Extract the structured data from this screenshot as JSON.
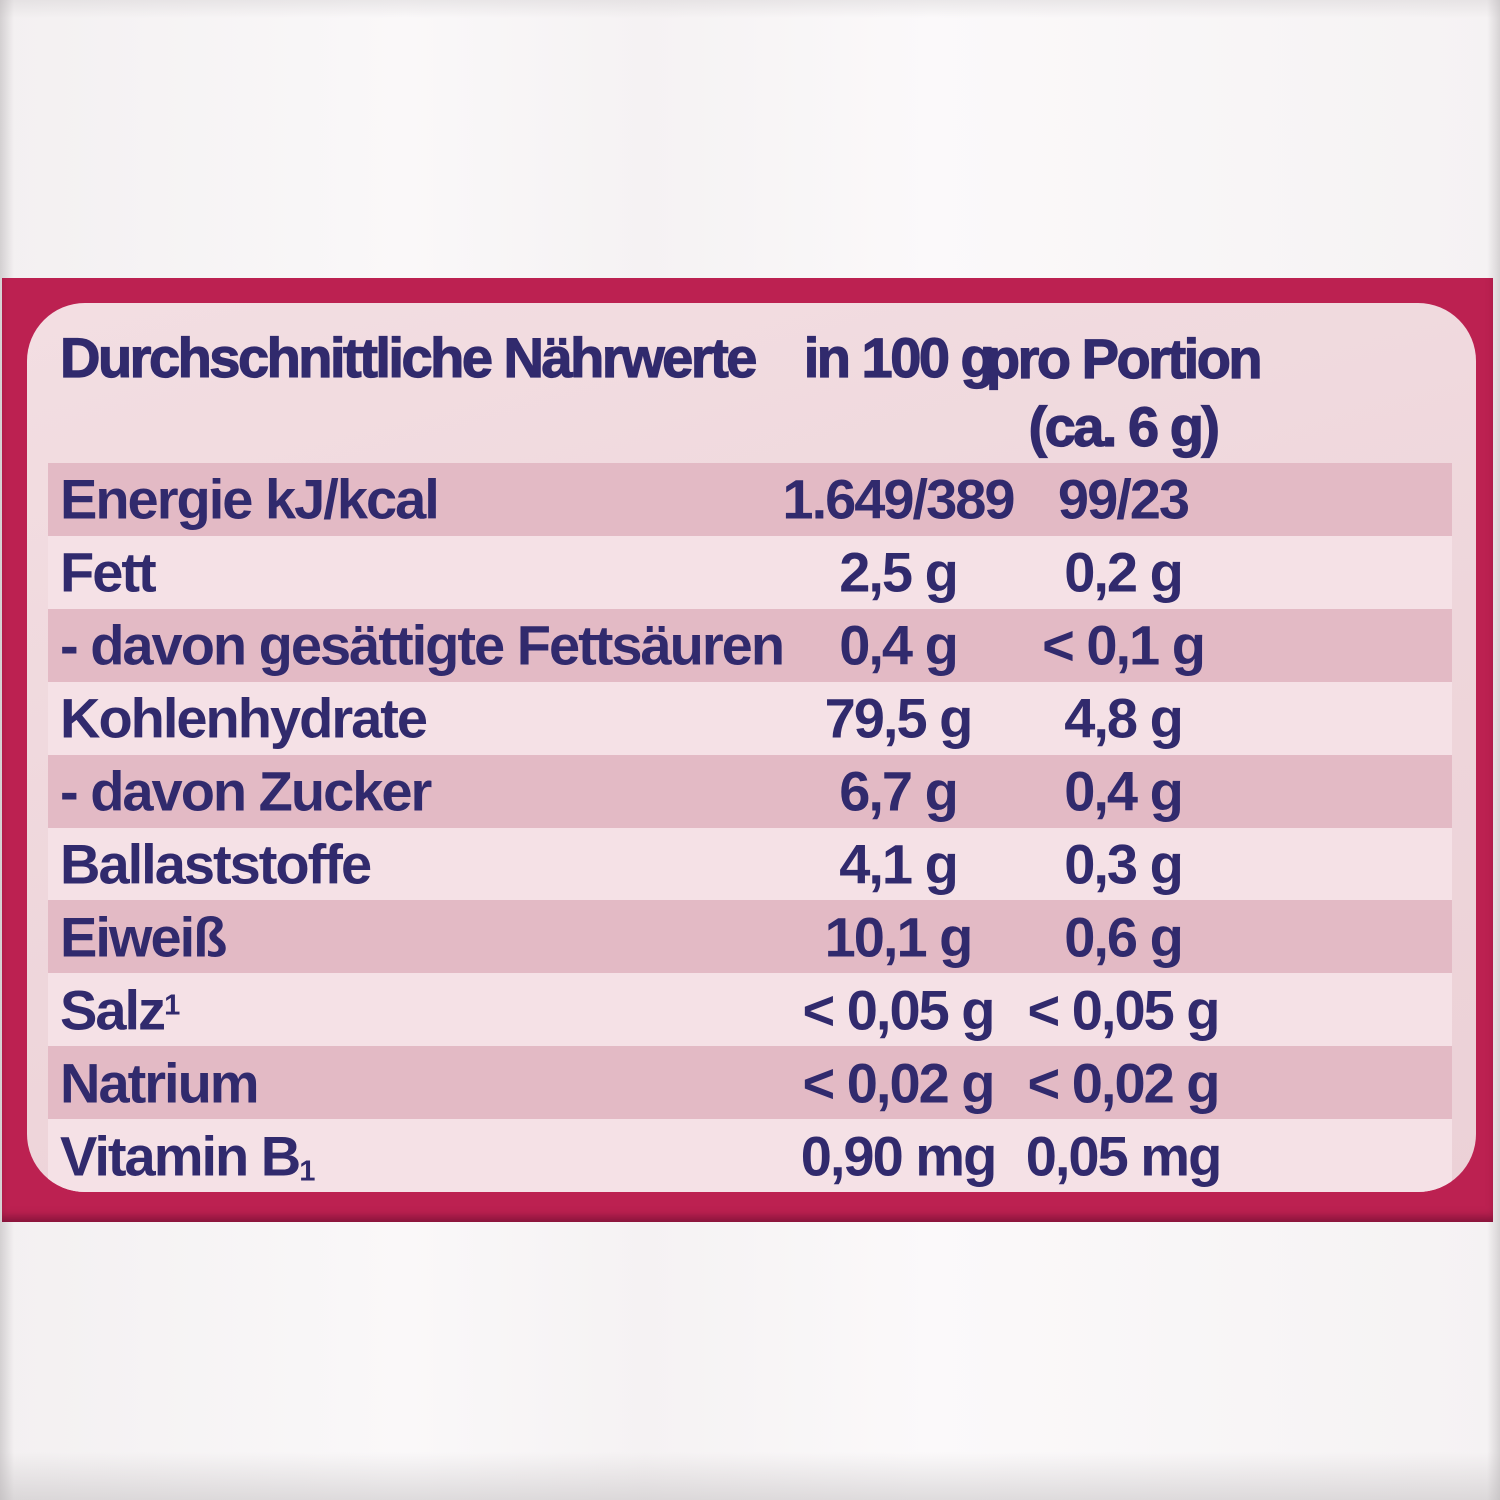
{
  "colors": {
    "red": "#bc2151",
    "panel": "#eed6db",
    "light": "#f5e1e6",
    "dark": "#e3bac5",
    "ink": "#312a6d"
  },
  "table": {
    "title": "Durchschnittliche Nährwerte",
    "col_per100_header": "in 100 g",
    "col_portion_header_line1": "pro Portion",
    "col_portion_header_line2": "(ca. 6 g)",
    "rows": [
      {
        "label": "Energie kJ/kcal",
        "sup": "",
        "sub": "",
        "per100": "1.649/389",
        "portion": "99/23",
        "shaded": true
      },
      {
        "label": "Fett",
        "sup": "",
        "sub": "",
        "per100": "2,5 g",
        "portion": "0,2 g",
        "shaded": false
      },
      {
        "label": "- davon gesättigte Fettsäuren",
        "sup": "",
        "sub": "",
        "per100": "0,4 g",
        "portion": "< 0,1 g",
        "shaded": true
      },
      {
        "label": "Kohlenhydrate",
        "sup": "",
        "sub": "",
        "per100": "79,5 g",
        "portion": "4,8 g",
        "shaded": false
      },
      {
        "label": "- davon Zucker",
        "sup": "",
        "sub": "",
        "per100": "6,7 g",
        "portion": "0,4 g",
        "shaded": true
      },
      {
        "label": "Ballaststoffe",
        "sup": "",
        "sub": "",
        "per100": "4,1 g",
        "portion": "0,3 g",
        "shaded": false
      },
      {
        "label": "Eiweiß",
        "sup": "",
        "sub": "",
        "per100": "10,1 g",
        "portion": "0,6 g",
        "shaded": true
      },
      {
        "label": "Salz",
        "sup": "1",
        "sub": "",
        "per100": "< 0,05 g",
        "portion": "< 0,05 g",
        "shaded": false
      },
      {
        "label": "Natrium",
        "sup": "",
        "sub": "",
        "per100": "< 0,02 g",
        "portion": "< 0,02 g",
        "shaded": true
      },
      {
        "label": "Vitamin B",
        "sup": "",
        "sub": "1",
        "per100": "0,90 mg",
        "portion": "0,05 mg",
        "shaded": false
      }
    ]
  }
}
